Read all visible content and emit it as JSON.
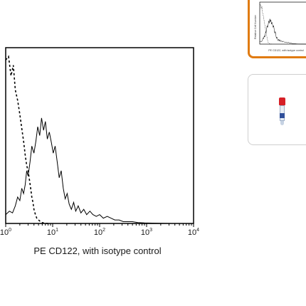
{
  "chart_data": {
    "type": "line",
    "title": "",
    "xlabel": "PE CD122, with isotype control",
    "ylabel": "",
    "x_scale": "log",
    "xlim": [
      1,
      10000
    ],
    "ylim": [
      0,
      100
    ],
    "x_ticks": [
      {
        "value": 1,
        "base": "10",
        "exp": "0"
      },
      {
        "value": 10,
        "base": "10",
        "exp": "1"
      },
      {
        "value": 100,
        "base": "10",
        "exp": "2"
      },
      {
        "value": 1000,
        "base": "10",
        "exp": "3"
      },
      {
        "value": 10000,
        "base": "10",
        "exp": "4"
      }
    ],
    "grid": false,
    "series": [
      {
        "style": "solid",
        "x": [
          1,
          1.2,
          1.4,
          1.6,
          1.8,
          2.0,
          2.2,
          2.4,
          2.6,
          2.8,
          3.0,
          3.3,
          3.6,
          4.0,
          4.4,
          4.8,
          5.3,
          5.8,
          6.4,
          7.0,
          7.7,
          8.5,
          9.4,
          10.3,
          11.3,
          12.5,
          13.8,
          15.2,
          16.8,
          18.5,
          20.4,
          22.5,
          25,
          28,
          31,
          35,
          40,
          46,
          53,
          62,
          72,
          85,
          100,
          120,
          145,
          175,
          210,
          260,
          320,
          400,
          500,
          650,
          900,
          1300,
          2000,
          3500,
          6000,
          10000
        ],
        "values": [
          5,
          7,
          6,
          10,
          15,
          13,
          20,
          17,
          22,
          30,
          27,
          35,
          44,
          40,
          47,
          55,
          50,
          60,
          53,
          58,
          48,
          52,
          46,
          40,
          44,
          35,
          26,
          30,
          20,
          14,
          17,
          11,
          8,
          12,
          7,
          10,
          6,
          8,
          5,
          7,
          5,
          4,
          5,
          3,
          4,
          3,
          2,
          2,
          1,
          1,
          1,
          0.5,
          0.3,
          0.2,
          0.1,
          0,
          0,
          0
        ]
      },
      {
        "style": "dashed",
        "x": [
          1,
          1.15,
          1.3,
          1.45,
          1.6,
          1.8,
          2.0,
          2.2,
          2.4,
          2.6,
          2.8,
          3.0,
          3.2,
          3.4,
          3.6,
          3.8,
          4.0,
          4.3,
          4.6,
          5.0,
          5.5,
          6.0,
          6.5,
          7.0,
          8.0
        ],
        "values": [
          93,
          95,
          84,
          90,
          76,
          70,
          62,
          54,
          47,
          39,
          33,
          30,
          25,
          20,
          15,
          12,
          8,
          5,
          3,
          2,
          1,
          0.5,
          0.2,
          0.1,
          0
        ]
      }
    ]
  },
  "thumbnails": {
    "histogram": {
      "ylabel": "Relative Cell Number",
      "xlabel": "PE CD122, with isotype control",
      "selected": true,
      "accent": "#e07b12"
    },
    "product": {
      "icon": "vial-icon",
      "cap_color": "#d62027",
      "label_color": "#2f4f9a"
    }
  }
}
